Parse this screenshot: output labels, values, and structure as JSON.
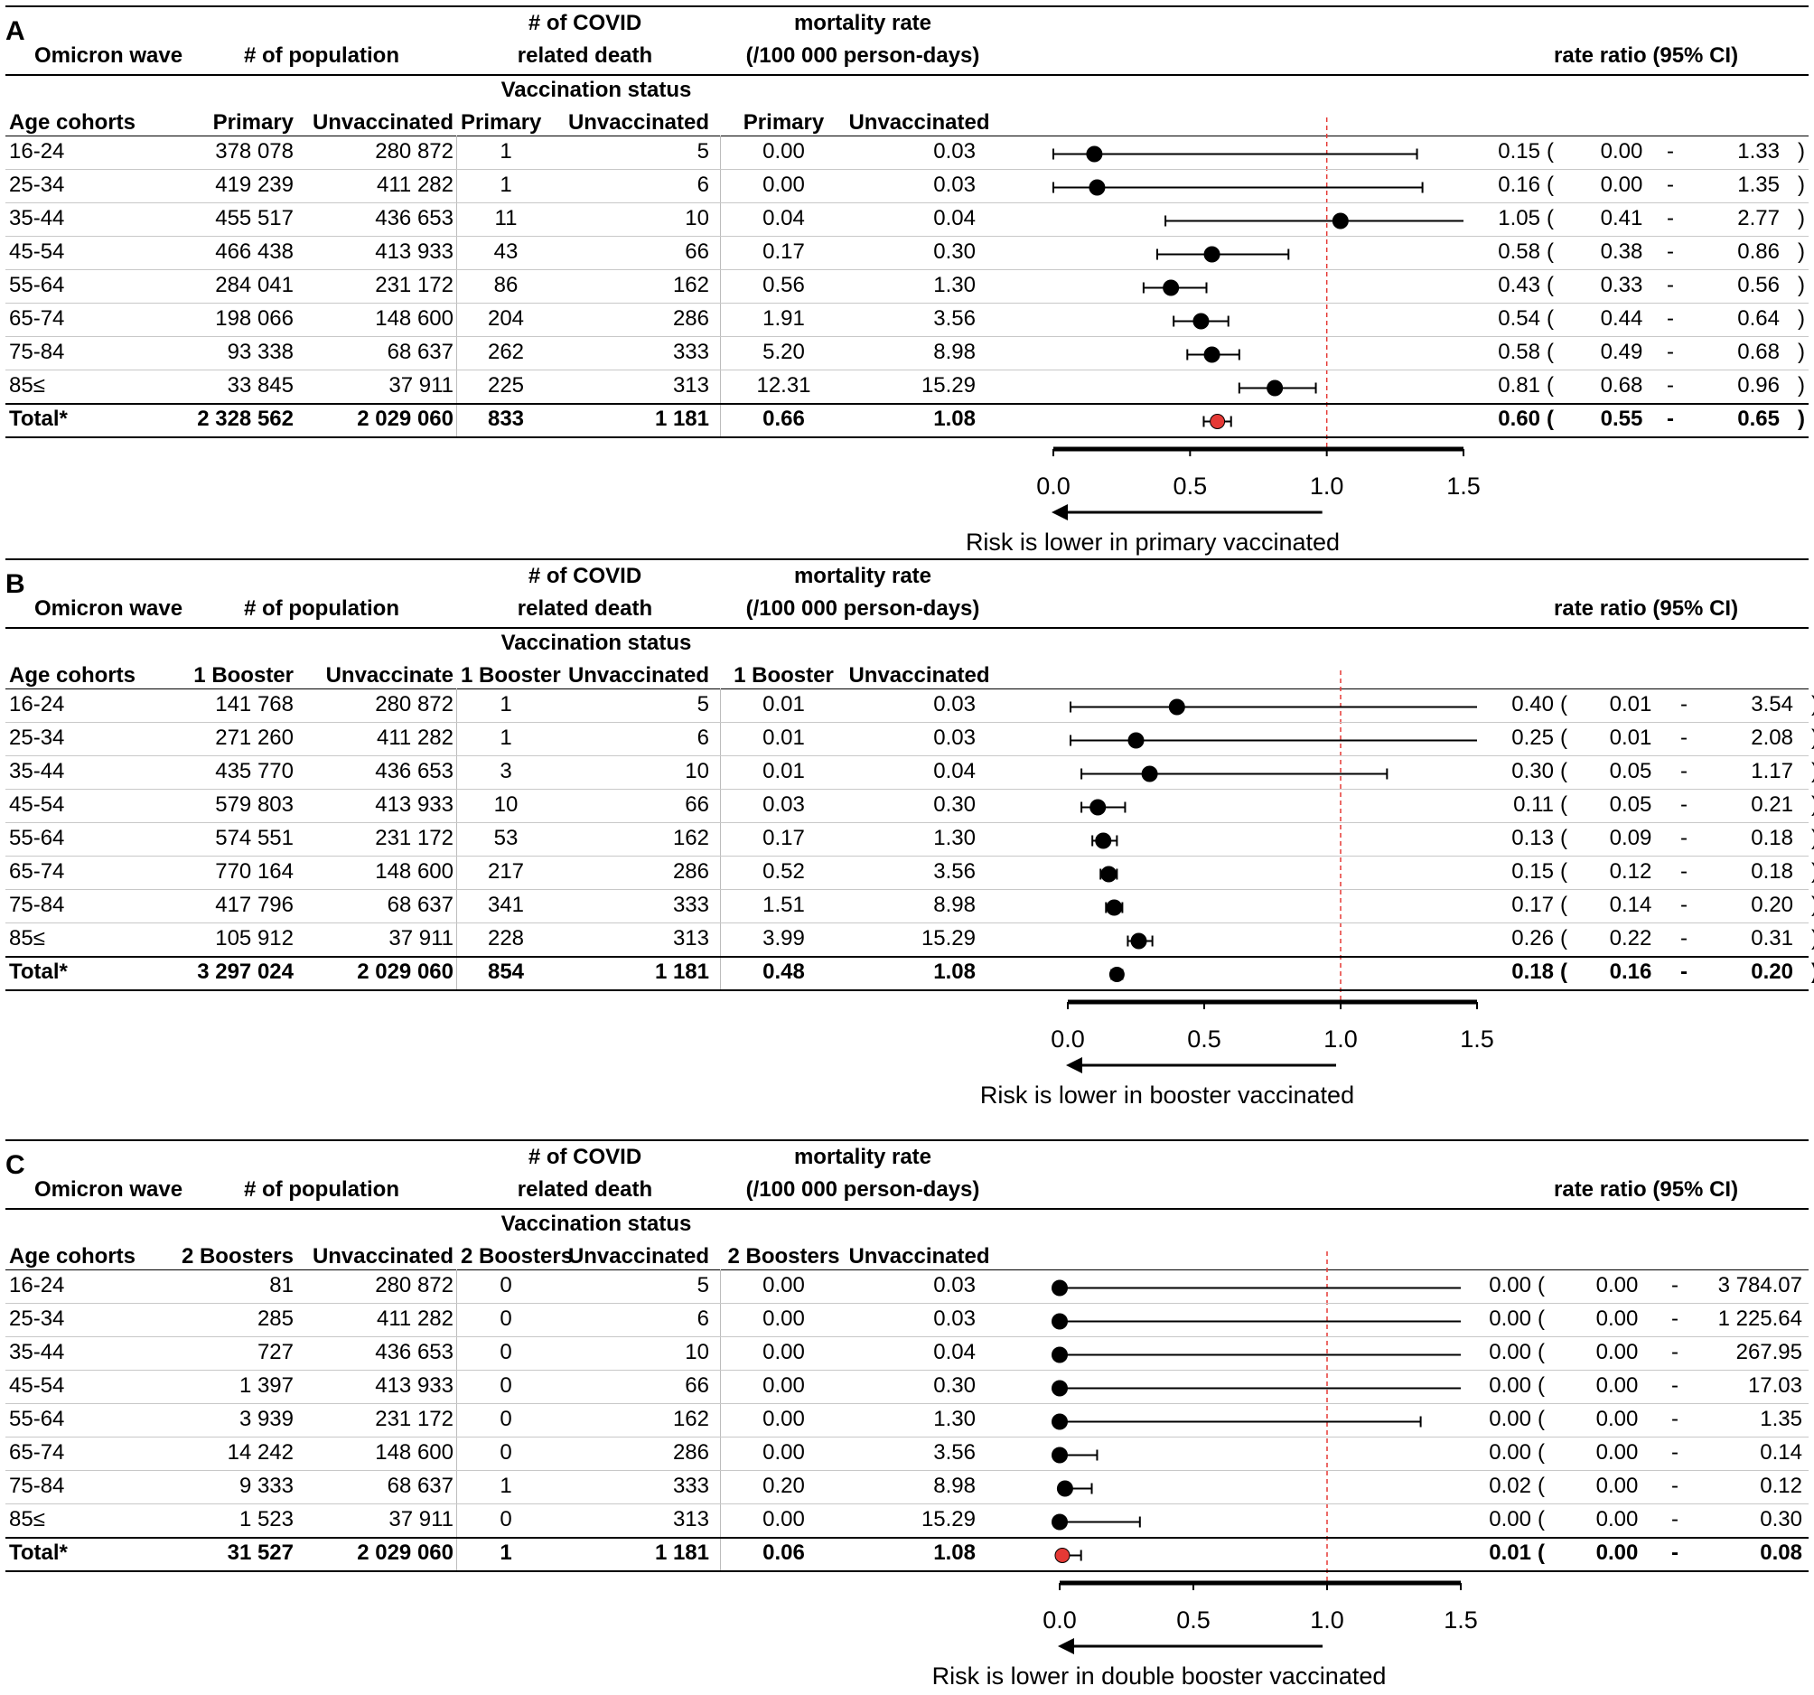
{
  "headers": {
    "omicron_wave": "Omicron wave",
    "population": "# of population",
    "covid_death_1": "# of COVID",
    "covid_death_2": "related death",
    "mortality_1": "mortality rate",
    "mortality_2": "(/100 000 person-days)",
    "rate_ratio": "rate ratio (95% CI)",
    "vaccination_status": "Vaccination status",
    "age_cohorts": "Age cohorts",
    "ci_open": "(",
    "ci_dash": "-",
    "ci_close": ")"
  },
  "chart_data": [
    {
      "type": "forest",
      "panel": "A",
      "vaccinated_label": "Primary",
      "vaccinated_label_pop": "Primary",
      "unvaccinated_label": "Unvaccinated",
      "unvaccinated_label_pop": "Unvaccinated",
      "xlim": [
        0,
        1.5
      ],
      "reference_line": 1.0,
      "ticks": [
        "0.0",
        "0.5",
        "1.0",
        "1.5"
      ],
      "caption": "Risk is lower in primary vaccinated",
      "colors": {
        "point": "#000000",
        "total_point": "#e53935",
        "reference": "#e53935"
      },
      "rows": [
        {
          "age": "16-24",
          "pop_v": "378 078",
          "pop_u": "280 872",
          "death_v": "1",
          "death_u": "5",
          "mort_v": "0.00",
          "mort_u": "0.03",
          "rr": "0.15",
          "lo": "0.00",
          "hi": "1.33",
          "rr_val": 0.15,
          "lo_val": 0.0,
          "hi_val": 1.33
        },
        {
          "age": "25-34",
          "pop_v": "419 239",
          "pop_u": "411 282",
          "death_v": "1",
          "death_u": "6",
          "mort_v": "0.00",
          "mort_u": "0.03",
          "rr": "0.16",
          "lo": "0.00",
          "hi": "1.35",
          "rr_val": 0.16,
          "lo_val": 0.0,
          "hi_val": 1.35
        },
        {
          "age": "35-44",
          "pop_v": "455 517",
          "pop_u": "436 653",
          "death_v": "11",
          "death_u": "10",
          "mort_v": "0.04",
          "mort_u": "0.04",
          "rr": "1.05",
          "lo": "0.41",
          "hi": "2.77",
          "rr_val": 1.05,
          "lo_val": 0.41,
          "hi_val": 2.77
        },
        {
          "age": "45-54",
          "pop_v": "466 438",
          "pop_u": "413 933",
          "death_v": "43",
          "death_u": "66",
          "mort_v": "0.17",
          "mort_u": "0.30",
          "rr": "0.58",
          "lo": "0.38",
          "hi": "0.86",
          "rr_val": 0.58,
          "lo_val": 0.38,
          "hi_val": 0.86
        },
        {
          "age": "55-64",
          "pop_v": "284 041",
          "pop_u": "231 172",
          "death_v": "86",
          "death_u": "162",
          "mort_v": "0.56",
          "mort_u": "1.30",
          "rr": "0.43",
          "lo": "0.33",
          "hi": "0.56",
          "rr_val": 0.43,
          "lo_val": 0.33,
          "hi_val": 0.56
        },
        {
          "age": "65-74",
          "pop_v": "198 066",
          "pop_u": "148 600",
          "death_v": "204",
          "death_u": "286",
          "mort_v": "1.91",
          "mort_u": "3.56",
          "rr": "0.54",
          "lo": "0.44",
          "hi": "0.64",
          "rr_val": 0.54,
          "lo_val": 0.44,
          "hi_val": 0.64
        },
        {
          "age": "75-84",
          "pop_v": "93 338",
          "pop_u": "68 637",
          "death_v": "262",
          "death_u": "333",
          "mort_v": "5.20",
          "mort_u": "8.98",
          "rr": "0.58",
          "lo": "0.49",
          "hi": "0.68",
          "rr_val": 0.58,
          "lo_val": 0.49,
          "hi_val": 0.68
        },
        {
          "age": "85≤",
          "pop_v": "33 845",
          "pop_u": "37 911",
          "death_v": "225",
          "death_u": "313",
          "mort_v": "12.31",
          "mort_u": "15.29",
          "rr": "0.81",
          "lo": "0.68",
          "hi": "0.96",
          "rr_val": 0.81,
          "lo_val": 0.68,
          "hi_val": 0.96
        }
      ],
      "total": {
        "age": "Total*",
        "pop_v": "2 328 562",
        "pop_u": "2 029 060",
        "death_v": "833",
        "death_u": "1 181",
        "mort_v": "0.66",
        "mort_u": "1.08",
        "rr": "0.60",
        "lo": "0.55",
        "hi": "0.65",
        "rr_val": 0.6,
        "lo_val": 0.55,
        "hi_val": 0.65
      }
    },
    {
      "type": "forest",
      "panel": "B",
      "vaccinated_label": "1 Booster",
      "vaccinated_label_pop": "1 Booster",
      "unvaccinated_label": "Unvaccinated",
      "unvaccinated_label_pop": "Unvaccinate",
      "xlim": [
        0,
        1.5
      ],
      "reference_line": 1.0,
      "ticks": [
        "0.0",
        "0.5",
        "1.0",
        "1.5"
      ],
      "caption": "Risk is lower in booster vaccinated",
      "colors": {
        "point": "#000000",
        "total_point": "#000000",
        "reference": "#e53935"
      },
      "rows": [
        {
          "age": "16-24",
          "pop_v": "141 768",
          "pop_u": "280 872",
          "death_v": "1",
          "death_u": "5",
          "mort_v": "0.01",
          "mort_u": "0.03",
          "rr": "0.40",
          "lo": "0.01",
          "hi": "3.54",
          "rr_val": 0.4,
          "lo_val": 0.01,
          "hi_val": 3.54
        },
        {
          "age": "25-34",
          "pop_v": "271 260",
          "pop_u": "411 282",
          "death_v": "1",
          "death_u": "6",
          "mort_v": "0.01",
          "mort_u": "0.03",
          "rr": "0.25",
          "lo": "0.01",
          "hi": "2.08",
          "rr_val": 0.25,
          "lo_val": 0.01,
          "hi_val": 2.08
        },
        {
          "age": "35-44",
          "pop_v": "435 770",
          "pop_u": "436 653",
          "death_v": "3",
          "death_u": "10",
          "mort_v": "0.01",
          "mort_u": "0.04",
          "rr": "0.30",
          "lo": "0.05",
          "hi": "1.17",
          "rr_val": 0.3,
          "lo_val": 0.05,
          "hi_val": 1.17
        },
        {
          "age": "45-54",
          "pop_v": "579 803",
          "pop_u": "413 933",
          "death_v": "10",
          "death_u": "66",
          "mort_v": "0.03",
          "mort_u": "0.30",
          "rr": "0.11",
          "lo": "0.05",
          "hi": "0.21",
          "rr_val": 0.11,
          "lo_val": 0.05,
          "hi_val": 0.21
        },
        {
          "age": "55-64",
          "pop_v": "574 551",
          "pop_u": "231 172",
          "death_v": "53",
          "death_u": "162",
          "mort_v": "0.17",
          "mort_u": "1.30",
          "rr": "0.13",
          "lo": "0.09",
          "hi": "0.18",
          "rr_val": 0.13,
          "lo_val": 0.09,
          "hi_val": 0.18
        },
        {
          "age": "65-74",
          "pop_v": "770 164",
          "pop_u": "148 600",
          "death_v": "217",
          "death_u": "286",
          "mort_v": "0.52",
          "mort_u": "3.56",
          "rr": "0.15",
          "lo": "0.12",
          "hi": "0.18",
          "rr_val": 0.15,
          "lo_val": 0.12,
          "hi_val": 0.18
        },
        {
          "age": "75-84",
          "pop_v": "417 796",
          "pop_u": "68 637",
          "death_v": "341",
          "death_u": "333",
          "mort_v": "1.51",
          "mort_u": "8.98",
          "rr": "0.17",
          "lo": "0.14",
          "hi": "0.20",
          "rr_val": 0.17,
          "lo_val": 0.14,
          "hi_val": 0.2
        },
        {
          "age": "85≤",
          "pop_v": "105 912",
          "pop_u": "37 911",
          "death_v": "228",
          "death_u": "313",
          "mort_v": "3.99",
          "mort_u": "15.29",
          "rr": "0.26",
          "lo": "0.22",
          "hi": "0.31",
          "rr_val": 0.26,
          "lo_val": 0.22,
          "hi_val": 0.31
        }
      ],
      "total": {
        "age": "Total*",
        "pop_v": "3 297 024",
        "pop_u": "2 029 060",
        "death_v": "854",
        "death_u": "1 181",
        "mort_v": "0.48",
        "mort_u": "1.08",
        "rr": "0.18",
        "lo": "0.16",
        "hi": "0.20",
        "rr_val": 0.18,
        "lo_val": 0.16,
        "hi_val": 0.2
      }
    },
    {
      "type": "forest",
      "panel": "C",
      "vaccinated_label": "2 Boosters",
      "vaccinated_label_pop": "2 Boosters",
      "unvaccinated_label": "Unvaccinated",
      "unvaccinated_label_pop": "Unvaccinated",
      "xlim": [
        0,
        1.5
      ],
      "reference_line": 1.0,
      "ticks": [
        "0.0",
        "0.5",
        "1.0",
        "1.5"
      ],
      "caption": "Risk is lower in double booster vaccinated",
      "colors": {
        "point": "#000000",
        "total_point": "#e53935",
        "reference": "#e53935"
      },
      "rows": [
        {
          "age": "16-24",
          "pop_v": "81",
          "pop_u": "280 872",
          "death_v": "0",
          "death_u": "5",
          "mort_v": "0.00",
          "mort_u": "0.03",
          "rr": "0.00",
          "lo": "0.00",
          "hi": "3 784.07",
          "rr_val": 0.0,
          "lo_val": 0.0,
          "hi_val": 3784.07
        },
        {
          "age": "25-34",
          "pop_v": "285",
          "pop_u": "411 282",
          "death_v": "0",
          "death_u": "6",
          "mort_v": "0.00",
          "mort_u": "0.03",
          "rr": "0.00",
          "lo": "0.00",
          "hi": "1 225.64",
          "rr_val": 0.0,
          "lo_val": 0.0,
          "hi_val": 1225.64
        },
        {
          "age": "35-44",
          "pop_v": "727",
          "pop_u": "436 653",
          "death_v": "0",
          "death_u": "10",
          "mort_v": "0.00",
          "mort_u": "0.04",
          "rr": "0.00",
          "lo": "0.00",
          "hi": "267.95",
          "rr_val": 0.0,
          "lo_val": 0.0,
          "hi_val": 267.95
        },
        {
          "age": "45-54",
          "pop_v": "1 397",
          "pop_u": "413 933",
          "death_v": "0",
          "death_u": "66",
          "mort_v": "0.00",
          "mort_u": "0.30",
          "rr": "0.00",
          "lo": "0.00",
          "hi": "17.03",
          "rr_val": 0.0,
          "lo_val": 0.0,
          "hi_val": 17.03
        },
        {
          "age": "55-64",
          "pop_v": "3 939",
          "pop_u": "231 172",
          "death_v": "0",
          "death_u": "162",
          "mort_v": "0.00",
          "mort_u": "1.30",
          "rr": "0.00",
          "lo": "0.00",
          "hi": "1.35",
          "rr_val": 0.0,
          "lo_val": 0.0,
          "hi_val": 1.35
        },
        {
          "age": "65-74",
          "pop_v": "14 242",
          "pop_u": "148 600",
          "death_v": "0",
          "death_u": "286",
          "mort_v": "0.00",
          "mort_u": "3.56",
          "rr": "0.00",
          "lo": "0.00",
          "hi": "0.14",
          "rr_val": 0.0,
          "lo_val": 0.0,
          "hi_val": 0.14
        },
        {
          "age": "75-84",
          "pop_v": "9 333",
          "pop_u": "68 637",
          "death_v": "1",
          "death_u": "333",
          "mort_v": "0.20",
          "mort_u": "8.98",
          "rr": "0.02",
          "lo": "0.00",
          "hi": "0.12",
          "rr_val": 0.02,
          "lo_val": 0.0,
          "hi_val": 0.12
        },
        {
          "age": "85≤",
          "pop_v": "1 523",
          "pop_u": "37 911",
          "death_v": "0",
          "death_u": "313",
          "mort_v": "0.00",
          "mort_u": "15.29",
          "rr": "0.00",
          "lo": "0.00",
          "hi": "0.30",
          "rr_val": 0.0,
          "lo_val": 0.0,
          "hi_val": 0.3
        }
      ],
      "total": {
        "age": "Total*",
        "pop_v": "31 527",
        "pop_u": "2 029 060",
        "death_v": "1",
        "death_u": "1 181",
        "mort_v": "0.06",
        "mort_u": "1.08",
        "rr": "0.01",
        "lo": "0.00",
        "hi": "0.08",
        "rr_val": 0.01,
        "lo_val": 0.0,
        "hi_val": 0.08
      }
    }
  ]
}
